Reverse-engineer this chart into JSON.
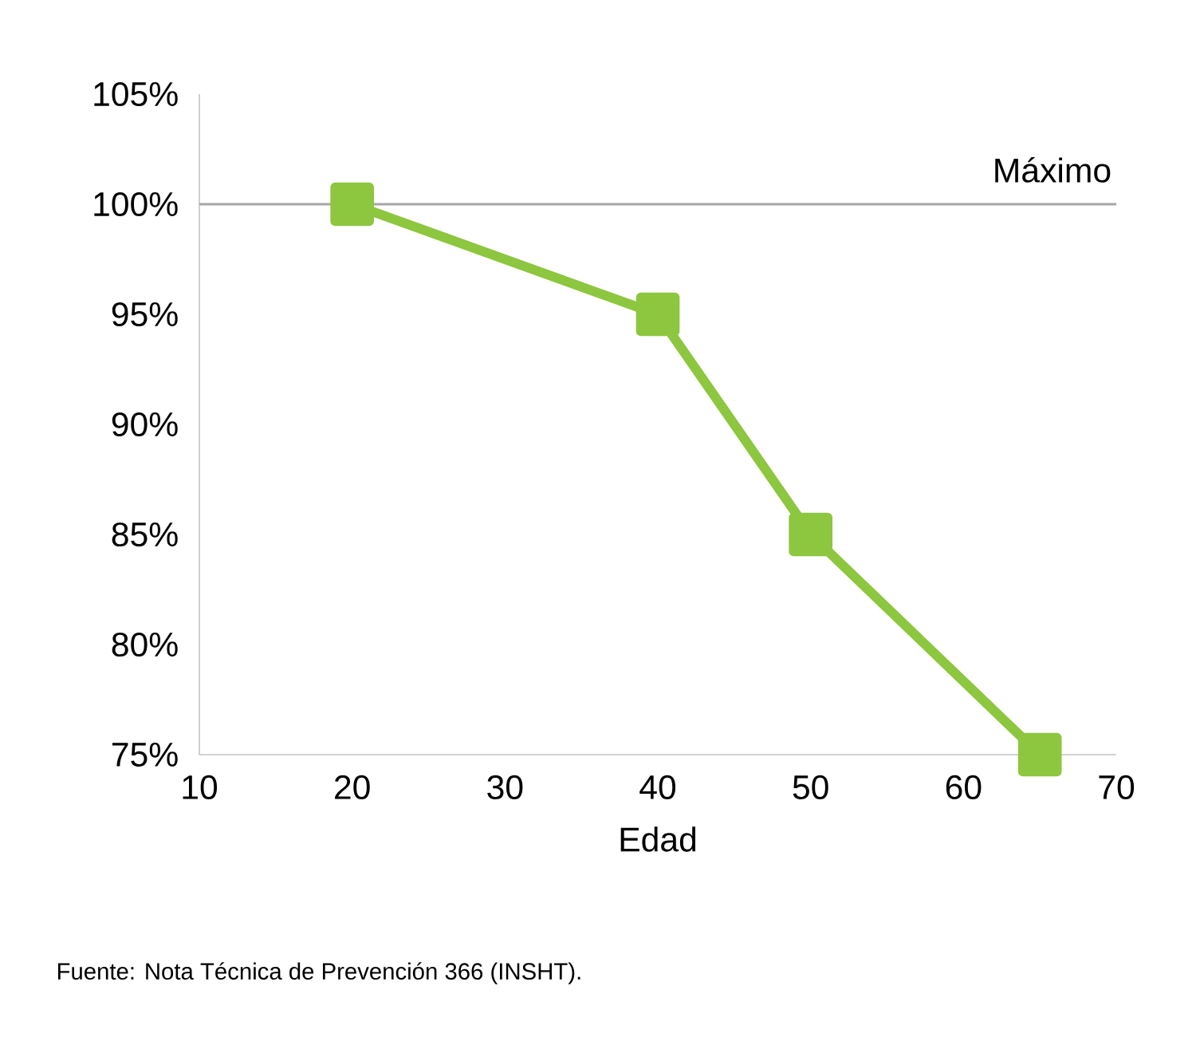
{
  "chart_data": {
    "type": "line",
    "xlabel": "Edad",
    "x": [
      20,
      40,
      50,
      65
    ],
    "series": [
      {
        "color": "#8dc63f",
        "values": [
          100,
          95,
          85,
          75
        ]
      }
    ],
    "xlim": [
      10,
      70
    ],
    "xticks": [
      10,
      20,
      30,
      40,
      50,
      60,
      70
    ],
    "ylim": [
      75,
      105
    ],
    "yticks": [
      {
        "value": 75,
        "label": "75%"
      },
      {
        "value": 80,
        "label": "80%"
      },
      {
        "value": 85,
        "label": "85%"
      },
      {
        "value": 90,
        "label": "90%"
      },
      {
        "value": 95,
        "label": "95%"
      },
      {
        "value": 100,
        "label": "100%"
      },
      {
        "value": 105,
        "label": "105%"
      }
    ],
    "marker": "square",
    "grid": false,
    "ref_lines": [
      {
        "axis": "y",
        "value": 100,
        "label": "Máximo",
        "color": "#a6a6a6"
      }
    ],
    "annotations": [
      "Fuente: Nota Técnica de Prevención 366 (INSHT)."
    ]
  }
}
